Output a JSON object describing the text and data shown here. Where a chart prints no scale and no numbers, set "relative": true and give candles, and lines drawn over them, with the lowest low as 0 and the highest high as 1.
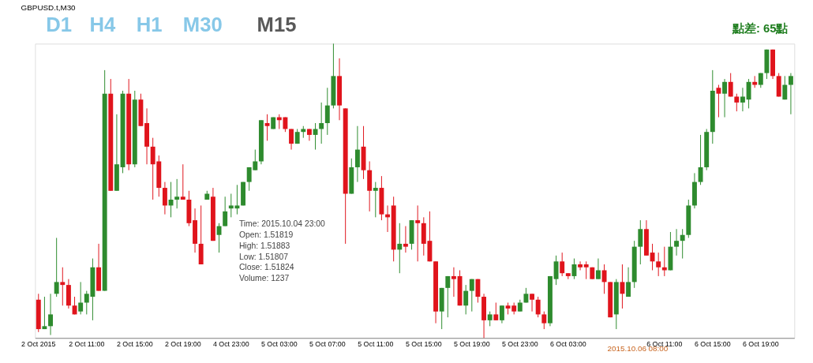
{
  "chart_data": {
    "type": "candlestick",
    "title": "GBPUSD.t,M30",
    "relative": true,
    "categories": [
      "2 Oct 2015",
      null,
      null,
      null,
      null,
      null,
      null,
      null,
      "2 Oct 11:00",
      null,
      null,
      null,
      null,
      null,
      null,
      null,
      "2 Oct 15:00",
      null,
      null,
      null,
      null,
      null,
      null,
      null,
      "2 Oct 19:00",
      null,
      null,
      null,
      null,
      null,
      null,
      null,
      "4 Oct 23:00",
      null,
      null,
      null,
      null,
      null,
      null,
      null,
      "5 Oct 03:00",
      null,
      null,
      null,
      null,
      null,
      null,
      null,
      "5 Oct 07:00",
      null,
      null,
      null,
      null,
      null,
      null,
      null,
      "5 Oct 11:00",
      null,
      null,
      null,
      null,
      null,
      null,
      null,
      "5 Oct 15:00",
      null,
      null,
      null,
      null,
      null,
      null,
      null,
      "5 Oct 19:00",
      null,
      null,
      null,
      null,
      null,
      null,
      null,
      "5 Oct 23:00",
      null,
      null,
      null,
      null,
      null,
      null,
      null,
      "6 Oct 03:00",
      null,
      null,
      null,
      null,
      null,
      null,
      null,
      null,
      null,
      null,
      null,
      null,
      null,
      null,
      null,
      "6 Oct 11:00",
      null,
      null,
      null,
      null,
      null,
      null,
      null,
      "6 Oct 15:00",
      null,
      null,
      null,
      null,
      null,
      null,
      null,
      "6 Oct 19:00",
      null,
      null,
      null,
      null,
      null
    ],
    "ohlc": [
      [
        0.13,
        0.15,
        0.02,
        0.03
      ],
      [
        0.03,
        0.14,
        0.03,
        0.04
      ],
      [
        0.04,
        0.15,
        0.01,
        0.08
      ],
      [
        0.15,
        0.34,
        0.14,
        0.19
      ],
      [
        0.19,
        0.24,
        0.11,
        0.18
      ],
      [
        0.18,
        0.2,
        0.1,
        0.11
      ],
      [
        0.11,
        0.14,
        0.08,
        0.08
      ],
      [
        0.09,
        0.19,
        0.08,
        0.12
      ],
      [
        0.12,
        0.16,
        0.08,
        0.15
      ],
      [
        0.14,
        0.27,
        0.06,
        0.24
      ],
      [
        0.24,
        0.32,
        0.16,
        0.16
      ],
      [
        0.16,
        0.91,
        0.16,
        0.83
      ],
      [
        0.83,
        0.88,
        0.5,
        0.5
      ],
      [
        0.5,
        0.76,
        0.5,
        0.59
      ],
      [
        0.58,
        0.84,
        0.56,
        0.83
      ],
      [
        0.83,
        0.88,
        0.57,
        0.59
      ],
      [
        0.59,
        0.84,
        0.58,
        0.81
      ],
      [
        0.81,
        0.83,
        0.72,
        0.72
      ],
      [
        0.73,
        0.78,
        0.59,
        0.65
      ],
      [
        0.65,
        0.68,
        0.47,
        0.59
      ],
      [
        0.6,
        0.62,
        0.48,
        0.51
      ],
      [
        0.51,
        0.53,
        0.42,
        0.45
      ],
      [
        0.45,
        0.53,
        0.41,
        0.47
      ],
      [
        0.47,
        0.54,
        0.44,
        0.48
      ],
      [
        0.48,
        0.59,
        0.47,
        0.47
      ],
      [
        0.47,
        0.5,
        0.38,
        0.39
      ],
      [
        0.4,
        0.44,
        0.29,
        0.32
      ],
      [
        0.32,
        0.45,
        0.25,
        0.25
      ],
      [
        0.47,
        0.5,
        0.47,
        0.49
      ],
      [
        0.48,
        0.51,
        0.33,
        0.33
      ],
      [
        0.35,
        0.39,
        0.29,
        0.38
      ],
      [
        0.38,
        0.48,
        0.38,
        0.43
      ],
      [
        0.44,
        0.49,
        0.41,
        0.45
      ],
      [
        0.44,
        0.52,
        0.42,
        0.45
      ],
      [
        0.45,
        0.53,
        0.45,
        0.53
      ],
      [
        0.53,
        0.58,
        0.5,
        0.58
      ],
      [
        0.57,
        0.64,
        0.57,
        0.6
      ],
      [
        0.6,
        0.74,
        0.59,
        0.74
      ],
      [
        0.73,
        0.76,
        0.67,
        0.72
      ],
      [
        0.71,
        0.75,
        0.71,
        0.75
      ],
      [
        0.75,
        0.76,
        0.71,
        0.74
      ],
      [
        0.75,
        0.75,
        0.7,
        0.71
      ],
      [
        0.71,
        0.71,
        0.64,
        0.66
      ],
      [
        0.66,
        0.71,
        0.66,
        0.7
      ],
      [
        0.7,
        0.72,
        0.68,
        0.71
      ],
      [
        0.71,
        0.71,
        0.67,
        0.69
      ],
      [
        0.69,
        0.73,
        0.64,
        0.71
      ],
      [
        0.71,
        0.8,
        0.66,
        0.73
      ],
      [
        0.73,
        0.85,
        0.69,
        0.79
      ],
      [
        0.79,
        1.0,
        0.78,
        0.89
      ],
      [
        0.89,
        0.95,
        0.74,
        0.79
      ],
      [
        0.78,
        0.78,
        0.32,
        0.49
      ],
      [
        0.49,
        0.61,
        0.49,
        0.58
      ],
      [
        0.58,
        0.72,
        0.53,
        0.64
      ],
      [
        0.65,
        0.72,
        0.54,
        0.57
      ],
      [
        0.57,
        0.6,
        0.43,
        0.5
      ],
      [
        0.5,
        0.53,
        0.41,
        0.51
      ],
      [
        0.51,
        0.55,
        0.4,
        0.42
      ],
      [
        0.42,
        0.45,
        0.36,
        0.41
      ],
      [
        0.45,
        0.48,
        0.26,
        0.3
      ],
      [
        0.3,
        0.39,
        0.22,
        0.32
      ],
      [
        0.32,
        0.38,
        0.29,
        0.31
      ],
      [
        0.32,
        0.4,
        0.3,
        0.4
      ],
      [
        0.4,
        0.45,
        0.26,
        0.39
      ],
      [
        0.39,
        0.41,
        0.28,
        0.32
      ],
      [
        0.33,
        0.43,
        0.26,
        0.26
      ],
      [
        0.26,
        0.26,
        0.05,
        0.09
      ],
      [
        0.09,
        0.17,
        0.03,
        0.17
      ],
      [
        0.17,
        0.21,
        0.07,
        0.21
      ],
      [
        0.21,
        0.24,
        0.14,
        0.2
      ],
      [
        0.21,
        0.23,
        0.11,
        0.11
      ],
      [
        0.11,
        0.18,
        0.08,
        0.16
      ],
      [
        0.16,
        0.2,
        0.09,
        0.2
      ],
      [
        0.2,
        0.2,
        0.12,
        0.14
      ],
      [
        0.14,
        0.15,
        0.0,
        0.06
      ],
      [
        0.06,
        0.09,
        0.04,
        0.08
      ],
      [
        0.08,
        0.12,
        0.06,
        0.06
      ],
      [
        0.06,
        0.11,
        0.05,
        0.11
      ],
      [
        0.11,
        0.12,
        0.08,
        0.1
      ],
      [
        0.11,
        0.12,
        0.08,
        0.09
      ],
      [
        0.09,
        0.13,
        0.09,
        0.12
      ],
      [
        0.12,
        0.17,
        0.12,
        0.15
      ],
      [
        0.15,
        0.15,
        0.09,
        0.13
      ],
      [
        0.13,
        0.14,
        0.07,
        0.08
      ],
      [
        0.08,
        0.09,
        0.03,
        0.05
      ],
      [
        0.05,
        0.21,
        0.04,
        0.21
      ],
      [
        0.2,
        0.28,
        0.18,
        0.26
      ],
      [
        0.26,
        0.29,
        0.21,
        0.22
      ],
      [
        0.22,
        0.22,
        0.2,
        0.21
      ],
      [
        0.21,
        0.27,
        0.2,
        0.25
      ],
      [
        0.25,
        0.26,
        0.23,
        0.24
      ],
      [
        0.25,
        0.26,
        0.2,
        0.24
      ],
      [
        0.24,
        0.24,
        0.2,
        0.2
      ],
      [
        0.2,
        0.27,
        0.2,
        0.23
      ],
      [
        0.23,
        0.25,
        0.15,
        0.19
      ],
      [
        0.19,
        0.19,
        0.07,
        0.07
      ],
      [
        0.08,
        0.2,
        0.03,
        0.19
      ],
      [
        0.19,
        0.25,
        0.1,
        0.15
      ],
      [
        0.14,
        0.24,
        0.14,
        0.19
      ],
      [
        0.19,
        0.33,
        0.17,
        0.31
      ],
      [
        0.31,
        0.4,
        0.25,
        0.37
      ],
      [
        0.37,
        0.4,
        0.28,
        0.28
      ],
      [
        0.29,
        0.32,
        0.23,
        0.26
      ],
      [
        0.26,
        0.29,
        0.21,
        0.24
      ],
      [
        0.24,
        0.31,
        0.21,
        0.23
      ],
      [
        0.23,
        0.36,
        0.23,
        0.31
      ],
      [
        0.31,
        0.37,
        0.28,
        0.33
      ],
      [
        0.33,
        0.37,
        0.27,
        0.35
      ],
      [
        0.35,
        0.47,
        0.34,
        0.45
      ],
      [
        0.45,
        0.56,
        0.44,
        0.53
      ],
      [
        0.53,
        0.69,
        0.52,
        0.58
      ],
      [
        0.58,
        0.71,
        0.57,
        0.7
      ],
      [
        0.7,
        0.91,
        0.66,
        0.84
      ],
      [
        0.85,
        0.86,
        0.75,
        0.83
      ],
      [
        0.83,
        0.88,
        0.75,
        0.87
      ],
      [
        0.87,
        0.9,
        0.82,
        0.82
      ],
      [
        0.82,
        0.83,
        0.77,
        0.8
      ],
      [
        0.8,
        0.85,
        0.77,
        0.82
      ],
      [
        0.81,
        0.88,
        0.78,
        0.87
      ],
      [
        0.87,
        0.89,
        0.85,
        0.86
      ],
      [
        0.86,
        0.9,
        0.85,
        0.9
      ],
      [
        0.9,
        0.98,
        0.88,
        0.98
      ],
      [
        0.98,
        0.98,
        0.88,
        0.89
      ],
      [
        0.89,
        0.9,
        0.82,
        0.82
      ],
      [
        0.81,
        0.89,
        0.81,
        0.86
      ],
      [
        0.86,
        0.9,
        0.76,
        0.89
      ]
    ],
    "colors": [
      "#e0141c",
      "#2e8b2e",
      "#2e8b2e",
      "#2e8b2e",
      "#e0141c",
      "#e0141c",
      "#e0141c",
      "#2e8b2e",
      "#2e8b2e",
      "#2e8b2e",
      "#e0141c",
      "#2e8b2e",
      "#e0141c",
      "#2e8b2e",
      "#2e8b2e",
      "#e0141c",
      "#2e8b2e",
      "#e0141c",
      "#e0141c",
      "#e0141c",
      "#e0141c",
      "#e0141c",
      "#2e8b2e",
      "#2e8b2e",
      "#e0141c",
      "#e0141c",
      "#e0141c",
      "#e0141c",
      "#2e8b2e",
      "#e0141c",
      "#2e8b2e",
      "#2e8b2e",
      "#2e8b2e",
      "#2e8b2e",
      "#2e8b2e",
      "#2e8b2e",
      "#2e8b2e",
      "#2e8b2e",
      "#e0141c",
      "#2e8b2e",
      "#e0141c",
      "#e0141c",
      "#e0141c",
      "#2e8b2e",
      "#2e8b2e",
      "#e0141c",
      "#2e8b2e",
      "#2e8b2e",
      "#2e8b2e",
      "#2e8b2e",
      "#e0141c",
      "#e0141c",
      "#2e8b2e",
      "#2e8b2e",
      "#e0141c",
      "#e0141c",
      "#2e8b2e",
      "#e0141c",
      "#e0141c",
      "#e0141c",
      "#2e8b2e",
      "#e0141c",
      "#2e8b2e",
      "#e0141c",
      "#e0141c",
      "#e0141c",
      "#e0141c",
      "#2e8b2e",
      "#2e8b2e",
      "#e0141c",
      "#e0141c",
      "#2e8b2e",
      "#2e8b2e",
      "#e0141c",
      "#e0141c",
      "#2e8b2e",
      "#e0141c",
      "#2e8b2e",
      "#e0141c",
      "#e0141c",
      "#2e8b2e",
      "#2e8b2e",
      "#e0141c",
      "#e0141c",
      "#e0141c",
      "#2e8b2e",
      "#2e8b2e",
      "#e0141c",
      "#e0141c",
      "#2e8b2e",
      "#e0141c",
      "#e0141c",
      "#e0141c",
      "#2e8b2e",
      "#e0141c",
      "#e0141c",
      "#2e8b2e",
      "#e0141c",
      "#2e8b2e",
      "#2e8b2e",
      "#2e8b2e",
      "#e0141c",
      "#e0141c",
      "#e0141c",
      "#e0141c",
      "#2e8b2e",
      "#2e8b2e",
      "#2e8b2e",
      "#2e8b2e",
      "#2e8b2e",
      "#2e8b2e",
      "#2e8b2e",
      "#2e8b2e",
      "#e0141c",
      "#2e8b2e",
      "#e0141c",
      "#e0141c",
      "#2e8b2e",
      "#2e8b2e",
      "#e0141c",
      "#2e8b2e",
      "#2e8b2e",
      "#e0141c",
      "#e0141c",
      "#2e8b2e",
      "#2e8b2e"
    ],
    "annotations": [
      "D1",
      "H4",
      "H1",
      "M30",
      "M15",
      "點差: 65點",
      "2015.10.06 08:00",
      "Time: 2015.10.04 23:00",
      "Open: 1.51819",
      "High: 1.51883",
      "Low:  1.51807",
      "Close: 1.51824",
      "Volume: 1237"
    ],
    "tick_labels": "x"
  }
}
